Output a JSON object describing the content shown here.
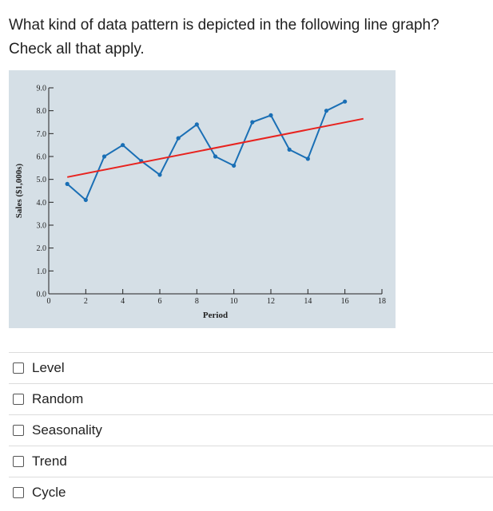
{
  "question": {
    "line1": "What kind of data pattern is depicted in the following line graph?",
    "line2": "Check all that apply."
  },
  "chart_data": {
    "type": "line",
    "xlabel": "Period",
    "ylabel": "Sales ($1,000s)",
    "xlim": [
      0,
      18
    ],
    "ylim": [
      0,
      9
    ],
    "x_ticks": [
      0,
      2,
      4,
      6,
      8,
      10,
      12,
      14,
      16,
      18
    ],
    "y_ticks": [
      "0.0",
      "1.0",
      "2.0",
      "3.0",
      "4.0",
      "5.0",
      "6.0",
      "7.0",
      "8.0",
      "9.0"
    ],
    "series": [
      {
        "color": "#1a6fb5",
        "x": [
          1,
          2,
          3,
          4,
          5,
          6,
          7,
          8,
          9,
          10,
          11,
          12,
          13,
          14,
          15,
          16
        ],
        "y": [
          4.8,
          4.1,
          6.0,
          6.5,
          5.8,
          5.2,
          6.8,
          7.4,
          6.0,
          5.6,
          7.5,
          7.8,
          6.3,
          5.9,
          8.0,
          8.4
        ]
      },
      {
        "color": "#e8231f",
        "x": [
          1,
          17
        ],
        "y": [
          5.1,
          7.65
        ]
      }
    ],
    "background": "#d5dfe6"
  },
  "options": [
    {
      "label": "Level"
    },
    {
      "label": "Random"
    },
    {
      "label": "Seasonality"
    },
    {
      "label": "Trend"
    },
    {
      "label": "Cycle"
    }
  ]
}
